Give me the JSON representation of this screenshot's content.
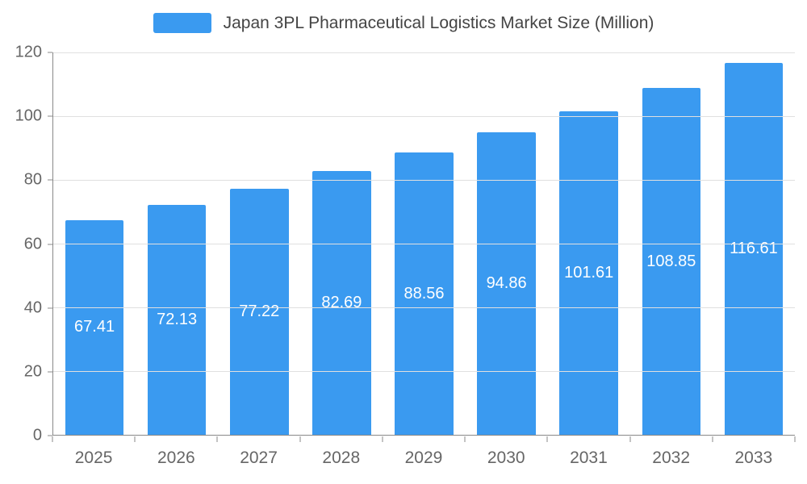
{
  "chart_data": {
    "type": "bar",
    "title": "Japan 3PL Pharmaceutical Logistics Market Size (Million)",
    "categories": [
      "2025",
      "2026",
      "2027",
      "2028",
      "2029",
      "2030",
      "2031",
      "2032",
      "2033"
    ],
    "values": [
      67.41,
      72.13,
      77.22,
      82.69,
      88.56,
      94.86,
      101.61,
      108.85,
      116.61
    ],
    "xlabel": "",
    "ylabel": "",
    "ylim": [
      0,
      120
    ],
    "yticks": [
      0,
      20,
      40,
      60,
      80,
      100,
      120
    ],
    "grid": true,
    "legend_position": "top",
    "value_labels_position": "inside-center",
    "colors": {
      "bar": "#3a9af0",
      "bar_label": "#ffffff",
      "title": "#444444",
      "axis_label": "#666666",
      "axis_line": "#888888",
      "gridline": "#e0e0e0",
      "background": "#ffffff"
    }
  }
}
